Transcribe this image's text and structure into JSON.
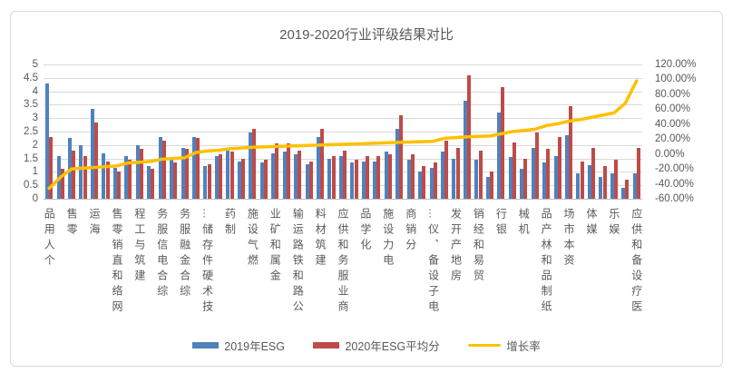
{
  "window": {
    "background": "#ffffff",
    "frame_border": "#d9d9d9"
  },
  "chart_data": {
    "type": "bar",
    "subtype": "grouped-bars-with-line-combo",
    "title": "2019-2020行业评级结果对比",
    "title_color": "#595959",
    "grid": true,
    "gridline_color": "#d9d9d9",
    "legend_position": "bottom",
    "category_axis": {
      "labels": [
        "个人用品",
        "零售",
        "海运",
        "网络和直销零售",
        "建筑与工程",
        "综合电信服务",
        "综合金融服务",
        "技术硬件存储…",
        "制药",
        "燃气设施",
        "金属和矿业",
        "公路和铁路运输",
        "建筑材料",
        "商业服务和供应",
        "化学品",
        "电力设施",
        "分销商",
        "电子设备、仪…",
        "房地产开发",
        "贸易和经销",
        "银行",
        "机械",
        "纸制品和林产品",
        "资本市场",
        "媒体",
        "娱乐",
        "医疗设备和供应"
      ],
      "label_interval": 2,
      "num_categories": 53,
      "note": "53 bar pairs; a text label is shown under every other category, read bottom-to-top"
    },
    "left_axis": {
      "min": 0,
      "max": 5,
      "step": 0.5,
      "ticks": [
        "5",
        "4.5",
        "4",
        "3.5",
        "3",
        "2.5",
        "2",
        "1.5",
        "1",
        "0.5",
        "0"
      ]
    },
    "right_axis": {
      "min": -0.6,
      "max": 1.2,
      "step": 0.2,
      "ticks": [
        "120.00%",
        "100.00%",
        "80.00%",
        "60.00%",
        "40.00%",
        "20.00%",
        "0.00%",
        "-20.00%",
        "-40.00%",
        "-60.00%"
      ]
    },
    "series": [
      {
        "name": "2019年ESG",
        "type": "bar",
        "color": "#4f81bd",
        "axis": "left",
        "values": [
          4.3,
          1.6,
          2.25,
          2.0,
          3.35,
          1.7,
          1.15,
          1.6,
          2.0,
          1.2,
          2.3,
          1.5,
          1.9,
          2.3,
          1.2,
          1.6,
          1.8,
          1.4,
          2.45,
          1.35,
          1.7,
          1.75,
          1.65,
          1.3,
          2.3,
          1.5,
          1.6,
          1.35,
          1.4,
          1.4,
          1.75,
          2.6,
          1.45,
          1.0,
          1.15,
          1.75,
          1.5,
          3.65,
          1.45,
          0.8,
          3.2,
          1.55,
          1.1,
          1.9,
          1.35,
          1.6,
          2.35,
          0.95,
          1.25,
          0.8,
          0.95,
          0.4,
          0.95
        ]
      },
      {
        "name": "2020年ESG平均分",
        "type": "bar",
        "color": "#be4b48",
        "axis": "left",
        "values": [
          2.3,
          1.1,
          1.8,
          1.6,
          2.85,
          1.4,
          1.0,
          1.45,
          1.85,
          1.1,
          2.15,
          1.35,
          1.85,
          2.25,
          1.3,
          1.65,
          1.75,
          1.5,
          2.6,
          1.45,
          2.05,
          2.05,
          1.8,
          1.4,
          2.6,
          1.6,
          1.8,
          1.45,
          1.6,
          1.6,
          1.65,
          3.1,
          1.65,
          1.2,
          1.35,
          2.15,
          1.9,
          4.6,
          1.8,
          1.0,
          4.15,
          2.1,
          1.5,
          2.45,
          1.85,
          2.3,
          3.45,
          1.4,
          1.9,
          1.2,
          1.45,
          0.7,
          1.9
        ]
      },
      {
        "name": "增长率",
        "type": "line",
        "color": "#ffc000",
        "axis": "right",
        "values_pct": [
          -46,
          -31,
          -20,
          -19,
          -18,
          -17,
          -16,
          -12,
          -11,
          -10,
          -7,
          -6,
          -5,
          2,
          4,
          5,
          7,
          8,
          9,
          9.5,
          10,
          10.5,
          11,
          11.5,
          12,
          12.5,
          13,
          13.5,
          14,
          14.5,
          15,
          15.5,
          16,
          16.5,
          17,
          21,
          22,
          23,
          23.5,
          24,
          27,
          30,
          31.5,
          33,
          38,
          40.5,
          44,
          46,
          49,
          52,
          55,
          68,
          98
        ]
      }
    ]
  }
}
